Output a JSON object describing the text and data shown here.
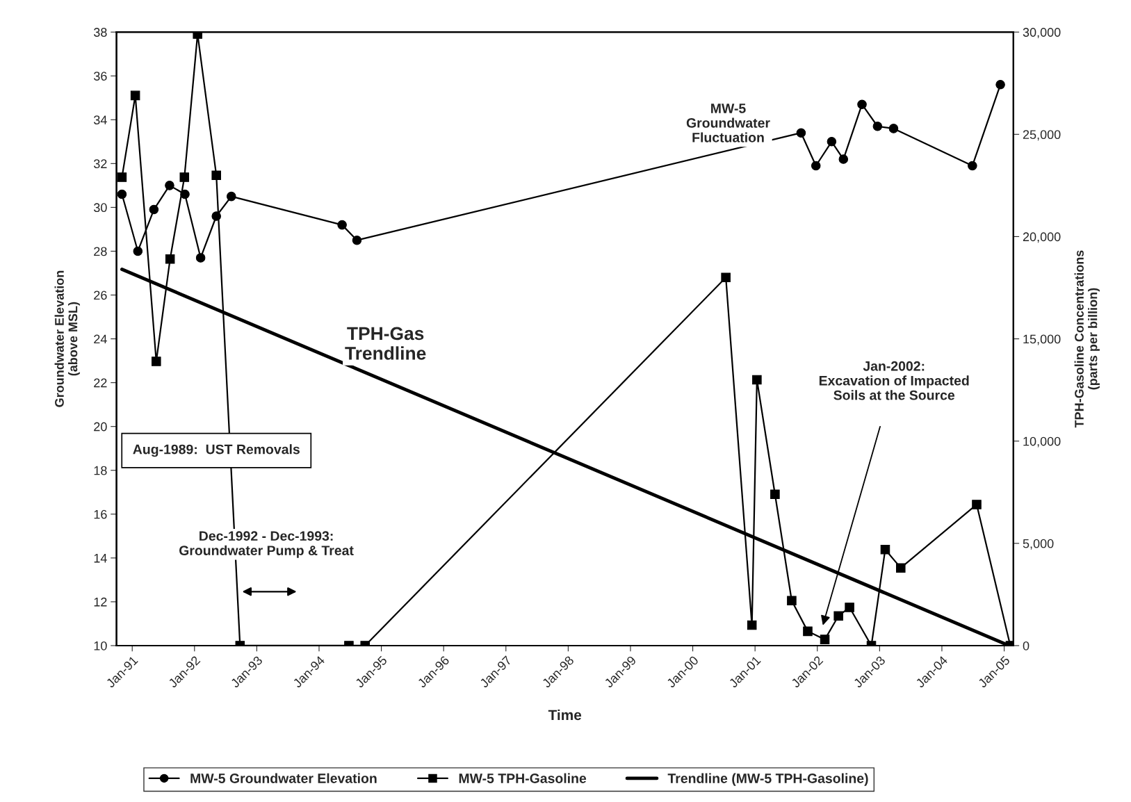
{
  "chart_data": {
    "type": "line",
    "xlabel": "Time",
    "ylabel": "Groundwater Elevation\n(above MSL)",
    "y2label": "TPH-Gasoline Concentrations\n(parts per billion)",
    "xlim": [
      "1990-10-01",
      "2005-02-24"
    ],
    "xticks": [
      {
        "value": "1991-01",
        "label": "Jan-91"
      },
      {
        "value": "1992-01",
        "label": "Jan-92"
      },
      {
        "value": "1993-01",
        "label": "Jan-93"
      },
      {
        "value": "1994-01",
        "label": "Jan-94"
      },
      {
        "value": "1995-01",
        "label": "Jan-95"
      },
      {
        "value": "1996-01",
        "label": "Jan-96"
      },
      {
        "value": "1997-01",
        "label": "Jan-97"
      },
      {
        "value": "1998-01",
        "label": "Jan-98"
      },
      {
        "value": "1999-01",
        "label": "Jan-99"
      },
      {
        "value": "2000-01",
        "label": "Jan-00"
      },
      {
        "value": "2001-01",
        "label": "Jan-01"
      },
      {
        "value": "2002-01",
        "label": "Jan-02"
      },
      {
        "value": "2003-01",
        "label": "Jan-03"
      },
      {
        "value": "2004-01",
        "label": "Jan-04"
      },
      {
        "value": "2005-01",
        "label": "Jan-05"
      }
    ],
    "ylim": [
      10,
      38
    ],
    "yticks": [
      10,
      12,
      14,
      16,
      18,
      20,
      22,
      24,
      26,
      28,
      30,
      32,
      34,
      36,
      38
    ],
    "y2lim": [
      0,
      30000
    ],
    "y2ticks": [
      0,
      {
        "value": 5000,
        "label": "5,000"
      },
      {
        "value": 10000,
        "label": "10,000"
      },
      {
        "value": 15000,
        "label": "15,000"
      },
      {
        "value": 20000,
        "label": "20,000"
      },
      {
        "value": 25000,
        "label": "25,000"
      },
      {
        "value": 30000,
        "label": "30,000"
      }
    ],
    "grid": false,
    "legend": "bottom",
    "series": [
      {
        "name": "MW-5 Groundwater Elevation",
        "color": "#000000",
        "marker": "circle",
        "x": [
          "1990-11-02",
          "1991-02-03",
          "1991-05-08",
          "1991-08-08",
          "1991-11-06",
          "1992-02-06",
          "1992-05-08",
          "1992-08-04",
          "1994-05-16",
          "1994-08-11",
          "2001-09-28",
          "2001-12-24",
          "2002-03-26",
          "2002-06-03",
          "2002-09-20",
          "2002-12-20",
          "2003-03-24",
          "2004-06-28",
          "2004-12-09"
        ],
        "values": [
          30.6,
          28.0,
          29.9,
          31.0,
          30.6,
          27.7,
          29.6,
          30.5,
          29.2,
          28.5,
          33.4,
          31.9,
          33.0,
          32.2,
          34.7,
          33.7,
          33.6,
          31.9,
          35.6
        ]
      },
      {
        "name": "MW-5 TPH-Gasoline",
        "color": "#000000",
        "marker": "square",
        "axis": "y2",
        "x": [
          "1990-11-02",
          "1991-01-19",
          "1991-05-22",
          "1991-08-11",
          "1991-11-03",
          "1992-01-19",
          "1992-05-08",
          "1992-09-24",
          "1994-06-25",
          "1994-09-28",
          "2000-07-13",
          "2000-12-13",
          "2001-01-12",
          "2001-04-28",
          "2001-08-04",
          "2001-11-06",
          "2002-02-14",
          "2002-05-05",
          "2002-07-09",
          "2002-11-14",
          "2003-02-03",
          "2003-05-05",
          "2004-07-23",
          "2005-02-06"
        ],
        "values": [
          22900,
          26900,
          13900,
          18900,
          22900,
          29900,
          23000,
          0,
          0,
          0,
          18000,
          1000,
          13000,
          7400,
          2200,
          700,
          300,
          1450,
          1870,
          0,
          4700,
          3800,
          6900,
          0
        ]
      },
      {
        "name": "Trendline (MW-5 TPH-Gasoline)",
        "color": "#000000",
        "marker": "none",
        "axis": "y2",
        "x": [
          "1990-11-02",
          "2005-01-30"
        ],
        "values": [
          18400,
          0
        ]
      }
    ],
    "annotations": [
      "MW-5\nGroundwater\nFluctuation",
      "TPH-Gas\nTrendline",
      "Aug-1989:  UST Removals",
      "Dec-1992 - Dec-1993:\nGroundwater Pump & Treat",
      "Jan-2002:\nExcavation of Impacted\nSoils at the Source"
    ]
  }
}
